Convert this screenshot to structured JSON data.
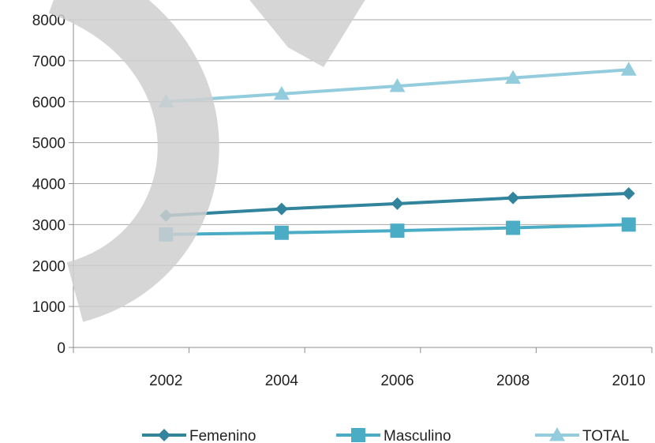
{
  "chart_data": {
    "type": "line",
    "categories": [
      "2002",
      "2004",
      "2006",
      "2008",
      "2010"
    ],
    "series": [
      {
        "name": "Femenino",
        "values": [
          3220,
          3380,
          3510,
          3650,
          3760
        ],
        "color": "#31849B",
        "marker": "diamond"
      },
      {
        "name": "Masculino",
        "values": [
          2760,
          2800,
          2850,
          2920,
          3000
        ],
        "color": "#4BACC6",
        "marker": "square"
      },
      {
        "name": "TOTAL",
        "values": [
          6000,
          6190,
          6380,
          6580,
          6780
        ],
        "color": "#93CDDD",
        "marker": "triangle"
      }
    ],
    "ylim": [
      0,
      8000
    ],
    "yticks": [
      "0",
      "1000",
      "2000",
      "3000",
      "4000",
      "5000",
      "6000",
      "7000",
      "8000"
    ],
    "grid": true,
    "legend_position": "bottom",
    "title": "",
    "xlabel": "",
    "ylabel": ""
  }
}
